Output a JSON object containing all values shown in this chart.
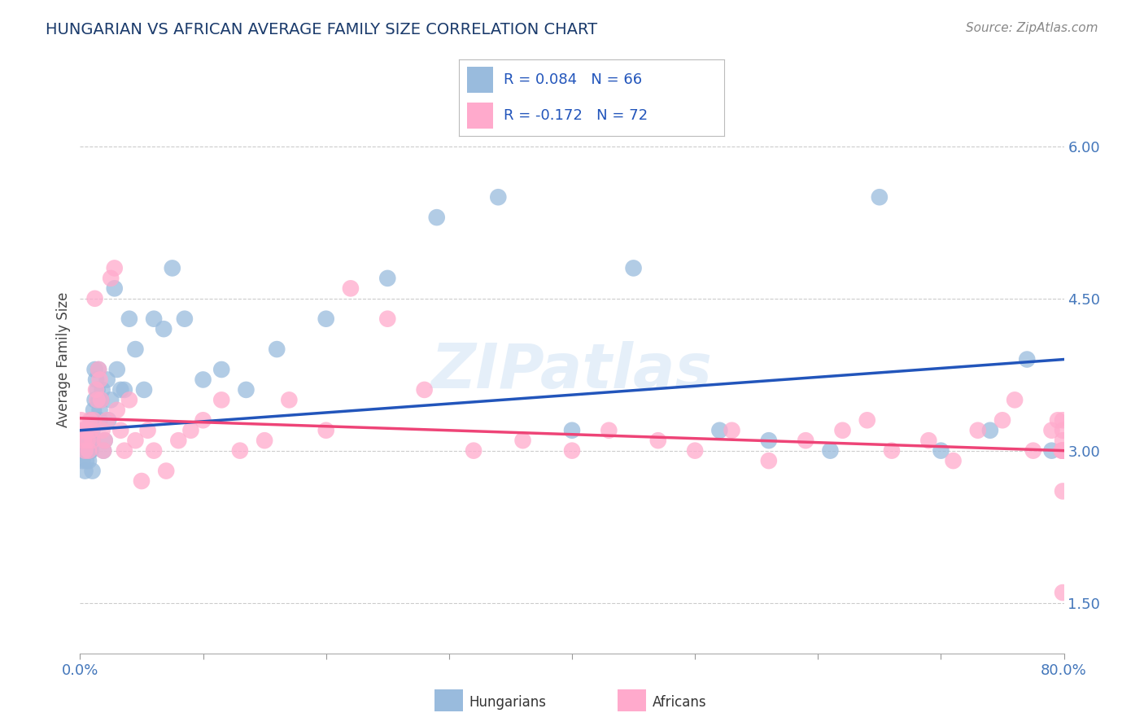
{
  "title": "HUNGARIAN VS AFRICAN AVERAGE FAMILY SIZE CORRELATION CHART",
  "source": "Source: ZipAtlas.com",
  "ylabel": "Average Family Size",
  "xlim": [
    0.0,
    0.8
  ],
  "ylim": [
    1.0,
    6.8
  ],
  "yticks": [
    1.5,
    3.0,
    4.5,
    6.0
  ],
  "xticks": [
    0.0,
    0.1,
    0.2,
    0.3,
    0.4,
    0.5,
    0.6,
    0.7,
    0.8
  ],
  "xticklabels": [
    "0.0%",
    "",
    "",
    "",
    "",
    "",
    "",
    "",
    "80.0%"
  ],
  "background_color": "#ffffff",
  "grid_color": "#cccccc",
  "title_color": "#1a3a6b",
  "axis_color": "#4477bb",
  "hungarian_color": "#99bbdd",
  "african_color": "#ffaacc",
  "hungarian_line_color": "#2255bb",
  "african_line_color": "#ee4477",
  "legend_text_color": "#2255bb",
  "watermark": "ZIPatlas",
  "R_hungarian": 0.084,
  "N_hungarian": 66,
  "R_african": -0.172,
  "N_african": 72,
  "hungarian_x": [
    0.001,
    0.002,
    0.002,
    0.003,
    0.003,
    0.004,
    0.004,
    0.005,
    0.005,
    0.006,
    0.006,
    0.007,
    0.007,
    0.008,
    0.008,
    0.009,
    0.009,
    0.01,
    0.01,
    0.01,
    0.011,
    0.011,
    0.012,
    0.012,
    0.013,
    0.014,
    0.015,
    0.015,
    0.016,
    0.016,
    0.017,
    0.018,
    0.019,
    0.02,
    0.022,
    0.023,
    0.025,
    0.028,
    0.03,
    0.033,
    0.036,
    0.04,
    0.045,
    0.052,
    0.06,
    0.068,
    0.075,
    0.085,
    0.1,
    0.115,
    0.135,
    0.16,
    0.2,
    0.25,
    0.29,
    0.34,
    0.4,
    0.45,
    0.52,
    0.56,
    0.61,
    0.65,
    0.7,
    0.74,
    0.77,
    0.79
  ],
  "hungarian_y": [
    3.0,
    3.1,
    2.9,
    3.2,
    3.0,
    3.1,
    2.8,
    2.9,
    3.1,
    3.0,
    3.2,
    3.1,
    2.9,
    3.0,
    3.2,
    3.3,
    3.0,
    3.1,
    3.2,
    2.8,
    3.4,
    3.3,
    3.5,
    3.8,
    3.7,
    3.6,
    3.5,
    3.8,
    3.3,
    3.4,
    3.5,
    3.6,
    3.0,
    3.1,
    3.7,
    3.3,
    3.5,
    4.6,
    3.8,
    3.6,
    3.6,
    4.3,
    4.0,
    3.6,
    4.3,
    4.2,
    4.8,
    4.3,
    3.7,
    3.8,
    3.6,
    4.0,
    4.3,
    4.7,
    5.3,
    5.5,
    3.2,
    4.8,
    3.2,
    3.1,
    3.0,
    5.5,
    3.0,
    3.2,
    3.9,
    3.0
  ],
  "african_x": [
    0.001,
    0.002,
    0.003,
    0.004,
    0.005,
    0.006,
    0.007,
    0.008,
    0.009,
    0.01,
    0.011,
    0.012,
    0.013,
    0.014,
    0.015,
    0.016,
    0.017,
    0.018,
    0.019,
    0.02,
    0.022,
    0.025,
    0.028,
    0.03,
    0.033,
    0.036,
    0.04,
    0.045,
    0.05,
    0.055,
    0.06,
    0.07,
    0.08,
    0.09,
    0.1,
    0.115,
    0.13,
    0.15,
    0.17,
    0.2,
    0.22,
    0.25,
    0.28,
    0.32,
    0.36,
    0.4,
    0.43,
    0.47,
    0.5,
    0.53,
    0.56,
    0.59,
    0.62,
    0.64,
    0.66,
    0.69,
    0.71,
    0.73,
    0.75,
    0.76,
    0.775,
    0.79,
    0.795,
    0.798,
    0.799,
    0.799,
    0.799,
    0.799,
    0.799,
    0.799,
    0.799,
    0.799
  ],
  "african_y": [
    3.3,
    3.2,
    3.1,
    3.0,
    3.2,
    3.1,
    3.0,
    3.3,
    3.2,
    3.1,
    3.3,
    4.5,
    3.6,
    3.5,
    3.8,
    3.7,
    3.5,
    3.2,
    3.0,
    3.1,
    3.3,
    4.7,
    4.8,
    3.4,
    3.2,
    3.0,
    3.5,
    3.1,
    2.7,
    3.2,
    3.0,
    2.8,
    3.1,
    3.2,
    3.3,
    3.5,
    3.0,
    3.1,
    3.5,
    3.2,
    4.6,
    4.3,
    3.6,
    3.0,
    3.1,
    3.0,
    3.2,
    3.1,
    3.0,
    3.2,
    2.9,
    3.1,
    3.2,
    3.3,
    3.0,
    3.1,
    2.9,
    3.2,
    3.3,
    3.5,
    3.0,
    3.2,
    3.3,
    3.0,
    3.1,
    3.3,
    3.0,
    2.6,
    3.0,
    1.6,
    3.0,
    3.2
  ]
}
